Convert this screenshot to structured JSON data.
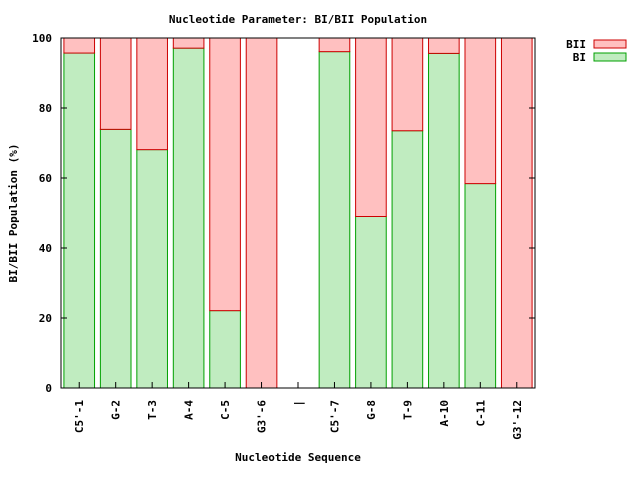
{
  "chart_data": {
    "type": "bar",
    "stacked": true,
    "title": "Nucleotide Parameter: BI/BII Population",
    "xlabel": "Nucleotide Sequence",
    "ylabel": "BI/BII Population (%)",
    "ylim": [
      0,
      100
    ],
    "yticks": [
      "0",
      "20",
      "40",
      "60",
      "80",
      "100"
    ],
    "grid": false,
    "legend_position": "top-right, outside plot",
    "categories": [
      "C5'-1",
      "G-2",
      "T-3",
      "A-4",
      "C-5",
      "G3'-6",
      "|",
      "C5'-7",
      "G-8",
      "T-9",
      "A-10",
      "C-11",
      "G3'-12"
    ],
    "series": [
      {
        "name": "BI",
        "fill_color": "#c0ecc0",
        "edge_color": "#00a000",
        "values": [
          95.7,
          73.9,
          68.1,
          97.1,
          22.1,
          0,
          null,
          96.1,
          49.0,
          73.5,
          95.6,
          58.4,
          0
        ]
      },
      {
        "name": "BII",
        "fill_color": "#ffc0c0",
        "edge_color": "#cc0000",
        "values": [
          4.3,
          26.1,
          31.9,
          2.9,
          77.9,
          100,
          null,
          3.9,
          51.0,
          26.5,
          4.4,
          41.6,
          100
        ]
      }
    ]
  }
}
